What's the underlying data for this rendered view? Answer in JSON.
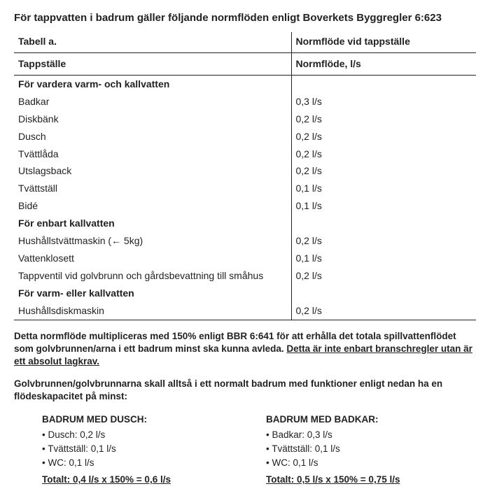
{
  "heading": "För tappvatten i badrum gäller följande normflöden enligt Boverkets Byggregler 6:623",
  "tableCaptionLeft": "Tabell a.",
  "tableCaptionRight": "Normflöde vid tappställe",
  "headerLeft": "Tappställe",
  "headerRight": "Normflöde, l/s",
  "sections": [
    {
      "title": "För vardera varm- och kallvatten",
      "rows": [
        {
          "label": "Badkar",
          "value": "0,3 l/s"
        },
        {
          "label": "Diskbänk",
          "value": "0,2 l/s"
        },
        {
          "label": "Dusch",
          "value": "0,2 l/s"
        },
        {
          "label": "Tvättlåda",
          "value": "0,2 l/s"
        },
        {
          "label": "Utslagsback",
          "value": "0,2 l/s"
        },
        {
          "label": "Tvättställ",
          "value": "0,1 l/s"
        },
        {
          "label": "Bidé",
          "value": "0,1 l/s"
        }
      ]
    },
    {
      "title": "För enbart kallvatten",
      "rows": [
        {
          "label": "Hushållstvättmaskin (← 5kg)",
          "value": "0,2 l/s"
        },
        {
          "label": "Vattenklosett",
          "value": "0,1 l/s"
        },
        {
          "label": "Tappventil vid golvbrunn och gårdsbevattning till småhus",
          "value": "0,2 l/s"
        }
      ]
    },
    {
      "title": "För varm- eller kallvatten",
      "rows": [
        {
          "label": "Hushållsdiskmaskin",
          "value": "0,2 l/s"
        }
      ]
    }
  ],
  "para1_a": "Detta normflöde multipliceras med 150% enligt BBR 6:641 för att erhålla det totala spillvattenflödet som golvbrunnen/arna i ett badrum minst ska kunna avleda. ",
  "para1_b": "Detta är inte enbart branschregler utan är ett absolut lagkrav.",
  "para2": "Golvbrunnen/golvbrunnarna skall alltså i ett normalt badrum med funktioner enligt nedan ha en flödeskapacitet på minst:",
  "left": {
    "title": "BADRUM MED DUSCH:",
    "items": [
      "• Dusch: 0,2 l/s",
      "• Tvättställ: 0,1 l/s",
      "• WC: 0,1 l/s"
    ],
    "total": "Totalt: 0,4 l/s x 150% = 0,6 l/s"
  },
  "right": {
    "title": "BADRUM MED BADKAR:",
    "items": [
      "• Badkar: 0,3 l/s",
      "• Tvättställ: 0,1 l/s",
      "• WC: 0,1 l/s"
    ],
    "total": "Totalt: 0,5 l/s x 150% = 0,75 l/s"
  }
}
